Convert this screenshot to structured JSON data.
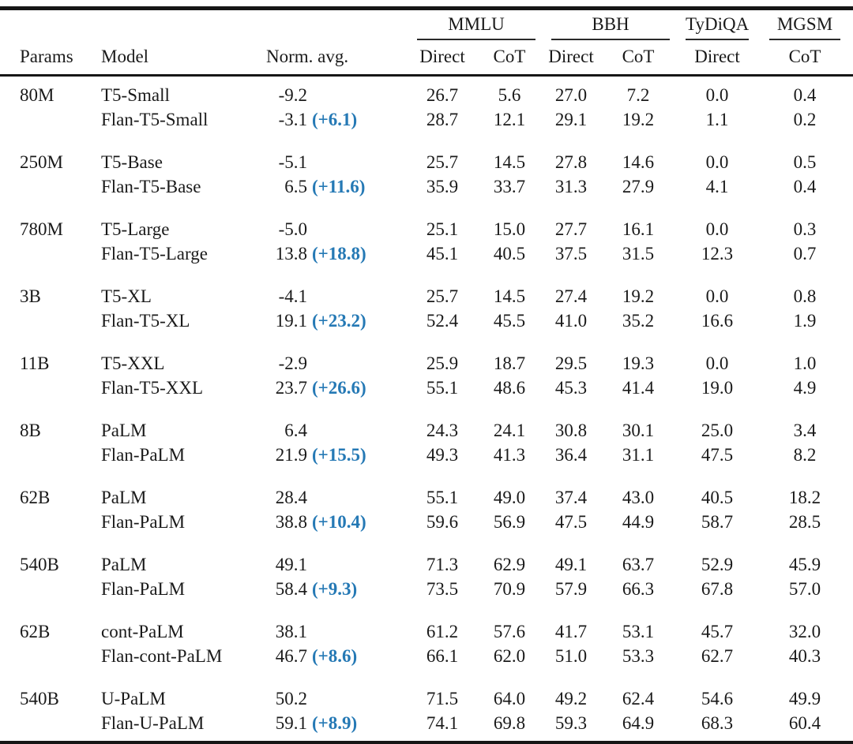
{
  "page": {
    "background": "#ffffff",
    "text_color": "#1a1a1a",
    "rule_color": "#161616",
    "delta_color": "#2579b5"
  },
  "table": {
    "left_headers": [
      "Params",
      "Model",
      "Norm. avg."
    ],
    "benchmark_groups": [
      {
        "label": "MMLU",
        "span": 2
      },
      {
        "label": "BBH",
        "span": 2
      },
      {
        "label": "TyDiQA",
        "span": 1
      },
      {
        "label": "MGSM",
        "span": 1
      }
    ],
    "sub_headers": [
      "Direct",
      "CoT",
      "Direct",
      "CoT",
      "Direct",
      "CoT"
    ],
    "groups": [
      {
        "params": "80M",
        "rows": [
          {
            "model": "T5-Small",
            "norm_avg": "-9.2",
            "delta": "",
            "mmlu_direct": "26.7",
            "mmlu_cot": "5.6",
            "bbh_direct": "27.0",
            "bbh_cot": "7.2",
            "tydiqa_direct": "0.0",
            "mgsm_cot": "0.4"
          },
          {
            "model": "Flan-T5-Small",
            "norm_avg": "-3.1",
            "delta": "(+6.1)",
            "mmlu_direct": "28.7",
            "mmlu_cot": "12.1",
            "bbh_direct": "29.1",
            "bbh_cot": "19.2",
            "tydiqa_direct": "1.1",
            "mgsm_cot": "0.2"
          }
        ]
      },
      {
        "params": "250M",
        "rows": [
          {
            "model": "T5-Base",
            "norm_avg": "-5.1",
            "delta": "",
            "mmlu_direct": "25.7",
            "mmlu_cot": "14.5",
            "bbh_direct": "27.8",
            "bbh_cot": "14.6",
            "tydiqa_direct": "0.0",
            "mgsm_cot": "0.5"
          },
          {
            "model": "Flan-T5-Base",
            "norm_avg": "6.5",
            "delta": "(+11.6)",
            "mmlu_direct": "35.9",
            "mmlu_cot": "33.7",
            "bbh_direct": "31.3",
            "bbh_cot": "27.9",
            "tydiqa_direct": "4.1",
            "mgsm_cot": "0.4"
          }
        ]
      },
      {
        "params": "780M",
        "rows": [
          {
            "model": "T5-Large",
            "norm_avg": "-5.0",
            "delta": "",
            "mmlu_direct": "25.1",
            "mmlu_cot": "15.0",
            "bbh_direct": "27.7",
            "bbh_cot": "16.1",
            "tydiqa_direct": "0.0",
            "mgsm_cot": "0.3"
          },
          {
            "model": "Flan-T5-Large",
            "norm_avg": "13.8",
            "delta": "(+18.8)",
            "mmlu_direct": "45.1",
            "mmlu_cot": "40.5",
            "bbh_direct": "37.5",
            "bbh_cot": "31.5",
            "tydiqa_direct": "12.3",
            "mgsm_cot": "0.7"
          }
        ]
      },
      {
        "params": "3B",
        "rows": [
          {
            "model": "T5-XL",
            "norm_avg": "-4.1",
            "delta": "",
            "mmlu_direct": "25.7",
            "mmlu_cot": "14.5",
            "bbh_direct": "27.4",
            "bbh_cot": "19.2",
            "tydiqa_direct": "0.0",
            "mgsm_cot": "0.8"
          },
          {
            "model": "Flan-T5-XL",
            "norm_avg": "19.1",
            "delta": "(+23.2)",
            "mmlu_direct": "52.4",
            "mmlu_cot": "45.5",
            "bbh_direct": "41.0",
            "bbh_cot": "35.2",
            "tydiqa_direct": "16.6",
            "mgsm_cot": "1.9"
          }
        ]
      },
      {
        "params": "11B",
        "rows": [
          {
            "model": "T5-XXL",
            "norm_avg": "-2.9",
            "delta": "",
            "mmlu_direct": "25.9",
            "mmlu_cot": "18.7",
            "bbh_direct": "29.5",
            "bbh_cot": "19.3",
            "tydiqa_direct": "0.0",
            "mgsm_cot": "1.0"
          },
          {
            "model": "Flan-T5-XXL",
            "norm_avg": "23.7",
            "delta": "(+26.6)",
            "mmlu_direct": "55.1",
            "mmlu_cot": "48.6",
            "bbh_direct": "45.3",
            "bbh_cot": "41.4",
            "tydiqa_direct": "19.0",
            "mgsm_cot": "4.9"
          }
        ]
      },
      {
        "params": "8B",
        "rows": [
          {
            "model": "PaLM",
            "norm_avg": "6.4",
            "delta": "",
            "mmlu_direct": "24.3",
            "mmlu_cot": "24.1",
            "bbh_direct": "30.8",
            "bbh_cot": "30.1",
            "tydiqa_direct": "25.0",
            "mgsm_cot": "3.4"
          },
          {
            "model": "Flan-PaLM",
            "norm_avg": "21.9",
            "delta": "(+15.5)",
            "mmlu_direct": "49.3",
            "mmlu_cot": "41.3",
            "bbh_direct": "36.4",
            "bbh_cot": "31.1",
            "tydiqa_direct": "47.5",
            "mgsm_cot": "8.2"
          }
        ]
      },
      {
        "params": "62B",
        "rows": [
          {
            "model": "PaLM",
            "norm_avg": "28.4",
            "delta": "",
            "mmlu_direct": "55.1",
            "mmlu_cot": "49.0",
            "bbh_direct": "37.4",
            "bbh_cot": "43.0",
            "tydiqa_direct": "40.5",
            "mgsm_cot": "18.2"
          },
          {
            "model": "Flan-PaLM",
            "norm_avg": "38.8",
            "delta": "(+10.4)",
            "mmlu_direct": "59.6",
            "mmlu_cot": "56.9",
            "bbh_direct": "47.5",
            "bbh_cot": "44.9",
            "tydiqa_direct": "58.7",
            "mgsm_cot": "28.5"
          }
        ]
      },
      {
        "params": "540B",
        "rows": [
          {
            "model": "PaLM",
            "norm_avg": "49.1",
            "delta": "",
            "mmlu_direct": "71.3",
            "mmlu_cot": "62.9",
            "bbh_direct": "49.1",
            "bbh_cot": "63.7",
            "tydiqa_direct": "52.9",
            "mgsm_cot": "45.9"
          },
          {
            "model": "Flan-PaLM",
            "norm_avg": "58.4",
            "delta": "(+9.3)",
            "mmlu_direct": "73.5",
            "mmlu_cot": "70.9",
            "bbh_direct": "57.9",
            "bbh_cot": "66.3",
            "tydiqa_direct": "67.8",
            "mgsm_cot": "57.0"
          }
        ]
      },
      {
        "params": "62B",
        "rows": [
          {
            "model": "cont-PaLM",
            "norm_avg": "38.1",
            "delta": "",
            "mmlu_direct": "61.2",
            "mmlu_cot": "57.6",
            "bbh_direct": "41.7",
            "bbh_cot": "53.1",
            "tydiqa_direct": "45.7",
            "mgsm_cot": "32.0"
          },
          {
            "model": "Flan-cont-PaLM",
            "norm_avg": "46.7",
            "delta": "(+8.6)",
            "mmlu_direct": "66.1",
            "mmlu_cot": "62.0",
            "bbh_direct": "51.0",
            "bbh_cot": "53.3",
            "tydiqa_direct": "62.7",
            "mgsm_cot": "40.3"
          }
        ]
      },
      {
        "params": "540B",
        "rows": [
          {
            "model": "U-PaLM",
            "norm_avg": "50.2",
            "delta": "",
            "mmlu_direct": "71.5",
            "mmlu_cot": "64.0",
            "bbh_direct": "49.2",
            "bbh_cot": "62.4",
            "tydiqa_direct": "54.6",
            "mgsm_cot": "49.9"
          },
          {
            "model": "Flan-U-PaLM",
            "norm_avg": "59.1",
            "delta": "(+8.9)",
            "mmlu_direct": "74.1",
            "mmlu_cot": "69.8",
            "bbh_direct": "59.3",
            "bbh_cot": "64.9",
            "tydiqa_direct": "68.3",
            "mgsm_cot": "60.4"
          }
        ]
      }
    ]
  }
}
